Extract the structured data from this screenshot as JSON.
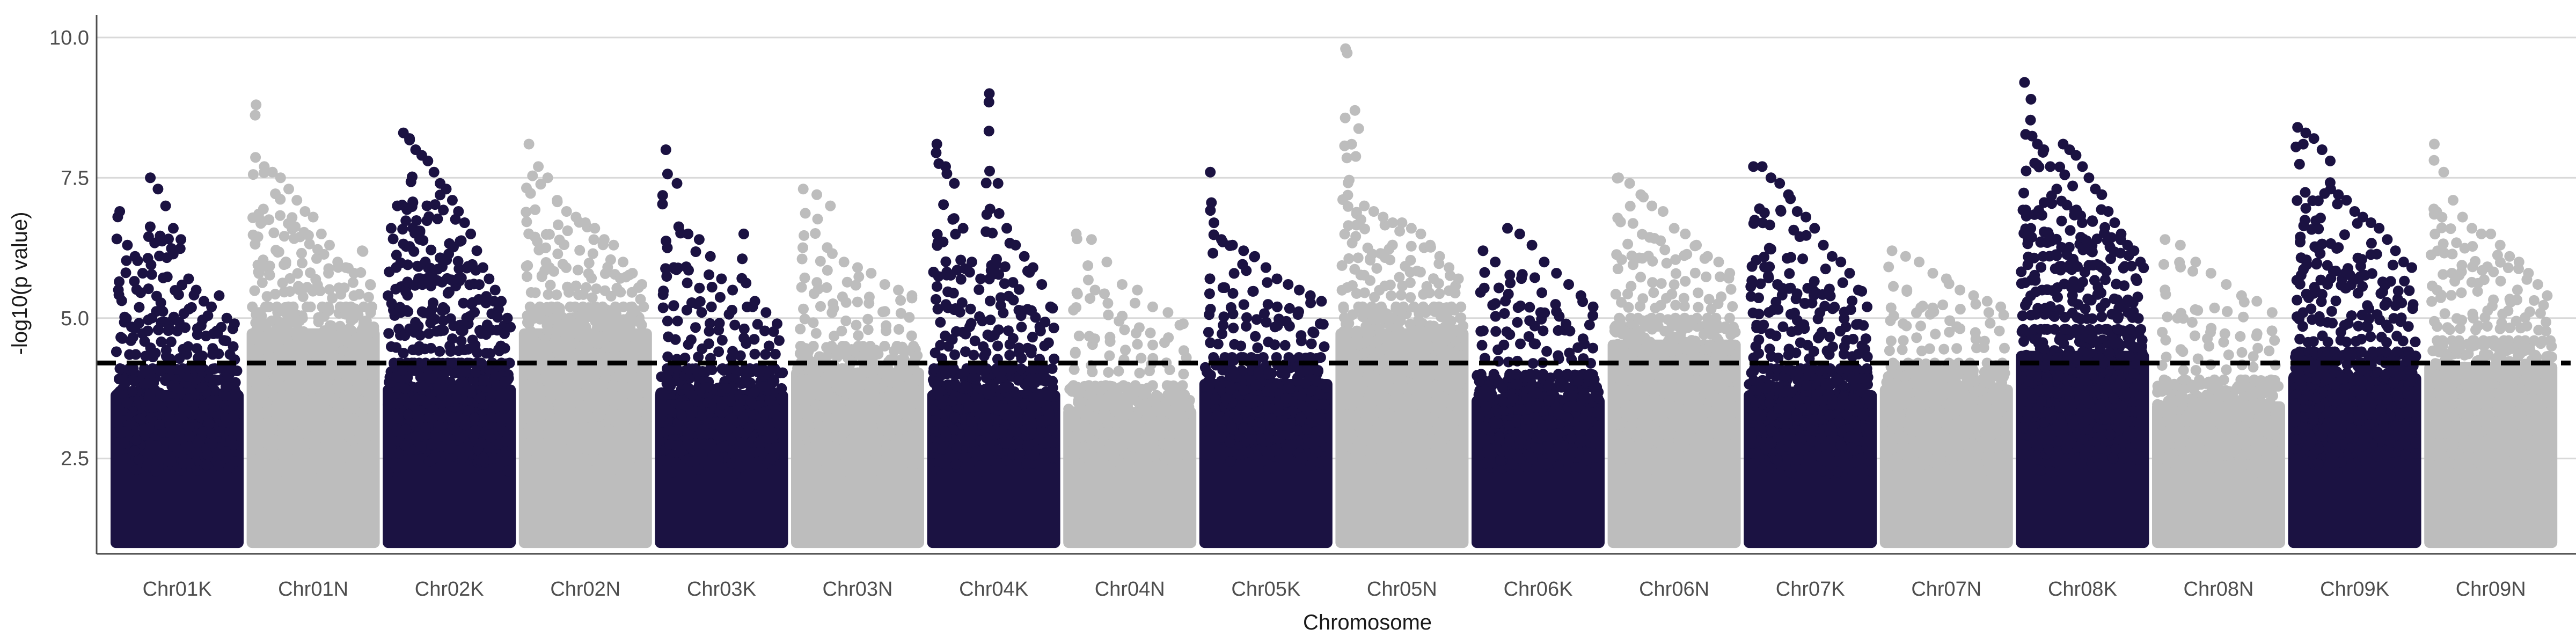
{
  "chart_data": {
    "type": "scatter",
    "subtype": "manhattan",
    "title": "",
    "xlabel": "Chromosome",
    "ylabel": "-log10(p value)",
    "ylim": [
      0.8,
      10.4
    ],
    "y_ticks": [
      2.5,
      5.0,
      7.5,
      10.0
    ],
    "y_tick_labels": [
      "2.5",
      "5.0",
      "7.5",
      "10.0"
    ],
    "grid": {
      "horizontal_major": true,
      "vertical": false
    },
    "legend": "none",
    "threshold": {
      "y": 4.2,
      "style": "dashed",
      "color": "#000000"
    },
    "colors": {
      "odd": "#1b1242",
      "even": "#bdbdbd"
    },
    "chromosomes": [
      "Chr01K",
      "Chr01N",
      "Chr02K",
      "Chr02N",
      "Chr03K",
      "Chr03N",
      "Chr04K",
      "Chr04N",
      "Chr05K",
      "Chr05N",
      "Chr06K",
      "Chr06N",
      "Chr07K",
      "Chr07N",
      "Chr08K",
      "Chr08N",
      "Chr09K",
      "Chr09N"
    ],
    "base_min": 1.0,
    "base_max": [
      4.1,
      5.2,
      4.2,
      5.2,
      4.1,
      4.5,
      4.1,
      3.8,
      4.3,
      5.2,
      4.0,
      5.0,
      4.1,
      4.2,
      4.8,
      3.9,
      4.4,
      4.6
    ],
    "peak_points": [
      {
        "chr": "Chr01K",
        "values": [
          6.9,
          6.3,
          6.1,
          5.8,
          7.5,
          7.3,
          7.0,
          6.6,
          6.4,
          5.7,
          5.5,
          5.3,
          5.2,
          5.4,
          5.0,
          4.9
        ]
      },
      {
        "chr": "Chr01N",
        "values": [
          8.8,
          7.7,
          7.6,
          7.5,
          7.3,
          7.1,
          6.9,
          6.8,
          6.5,
          6.3,
          6.0,
          5.9,
          5.8,
          6.2,
          5.6
        ]
      },
      {
        "chr": "Chr02K",
        "values": [
          6.6,
          7.0,
          8.3,
          8.2,
          8.0,
          7.9,
          7.8,
          7.6,
          7.4,
          7.3,
          7.1,
          6.9,
          6.7,
          6.5,
          6.2,
          5.9,
          5.7,
          5.5,
          5.3,
          5.0
        ]
      },
      {
        "chr": "Chr02N",
        "values": [
          8.1,
          7.7,
          7.5,
          7.1,
          6.9,
          6.8,
          6.7,
          6.6,
          6.4,
          6.3,
          6.0,
          5.8,
          5.6
        ]
      },
      {
        "chr": "Chr03K",
        "values": [
          8.0,
          7.4,
          6.5,
          6.4,
          6.1,
          5.7,
          5.5,
          6.5,
          5.3,
          5.1,
          4.9
        ]
      },
      {
        "chr": "Chr03N",
        "values": [
          7.3,
          7.2,
          7.0,
          6.0,
          5.9,
          5.8,
          5.6,
          5.5,
          5.4
        ]
      },
      {
        "chr": "Chr04K",
        "values": [
          8.1,
          7.7,
          7.4,
          6.6,
          6.0,
          5.7,
          9.0,
          7.4,
          6.6,
          6.3,
          6.1,
          5.9,
          5.6,
          5.2
        ]
      },
      {
        "chr": "Chr04N",
        "values": [
          6.5,
          6.4,
          6.0,
          5.6,
          5.5,
          5.2,
          5.1,
          4.9
        ]
      },
      {
        "chr": "Chr05K",
        "values": [
          7.6,
          6.4,
          6.3,
          6.2,
          6.1,
          5.9,
          5.7,
          5.6,
          5.5,
          5.4,
          5.3
        ]
      },
      {
        "chr": "Chr05N",
        "values": [
          9.8,
          8.7,
          7.0,
          6.9,
          6.8,
          6.7,
          6.7,
          6.6,
          6.5,
          6.3,
          6.1,
          5.9,
          5.7
        ]
      },
      {
        "chr": "Chr06K",
        "values": [
          6.2,
          6.0,
          6.6,
          6.5,
          6.3,
          6.0,
          5.8,
          5.6,
          5.4,
          5.2
        ]
      },
      {
        "chr": "Chr06N",
        "values": [
          7.5,
          7.4,
          7.2,
          7.0,
          6.9,
          6.6,
          6.5,
          6.3,
          6.1,
          6.0,
          5.8
        ]
      },
      {
        "chr": "Chr07K",
        "values": [
          7.7,
          7.7,
          7.5,
          7.4,
          7.2,
          6.9,
          6.8,
          6.6,
          6.3,
          6.1,
          6.0,
          5.8,
          5.5,
          5.2
        ]
      },
      {
        "chr": "Chr07N",
        "values": [
          6.2,
          6.1,
          6.0,
          5.8,
          5.7,
          5.5,
          5.4,
          5.3,
          5.2
        ]
      },
      {
        "chr": "Chr08K",
        "values": [
          9.2,
          8.9,
          8.1,
          8.0,
          7.7,
          7.3,
          8.1,
          8.0,
          7.9,
          7.7,
          7.5,
          7.3,
          7.2,
          6.9,
          6.7,
          6.5,
          6.3,
          6.2,
          6.0
        ]
      },
      {
        "chr": "Chr08N",
        "values": [
          6.4,
          6.3,
          6.0,
          5.8,
          5.6,
          5.4,
          5.3,
          5.1
        ]
      },
      {
        "chr": "Chr09K",
        "values": [
          8.4,
          8.3,
          8.2,
          8.0,
          7.8,
          7.2,
          7.1,
          6.9,
          6.8,
          6.7,
          6.6,
          6.4,
          6.2,
          6.0,
          5.9
        ]
      },
      {
        "chr": "Chr09N",
        "values": [
          8.1,
          7.6,
          7.1,
          6.8,
          6.6,
          6.5,
          6.5,
          6.3,
          6.1,
          6.0,
          5.8,
          5.6,
          5.4
        ]
      }
    ]
  }
}
